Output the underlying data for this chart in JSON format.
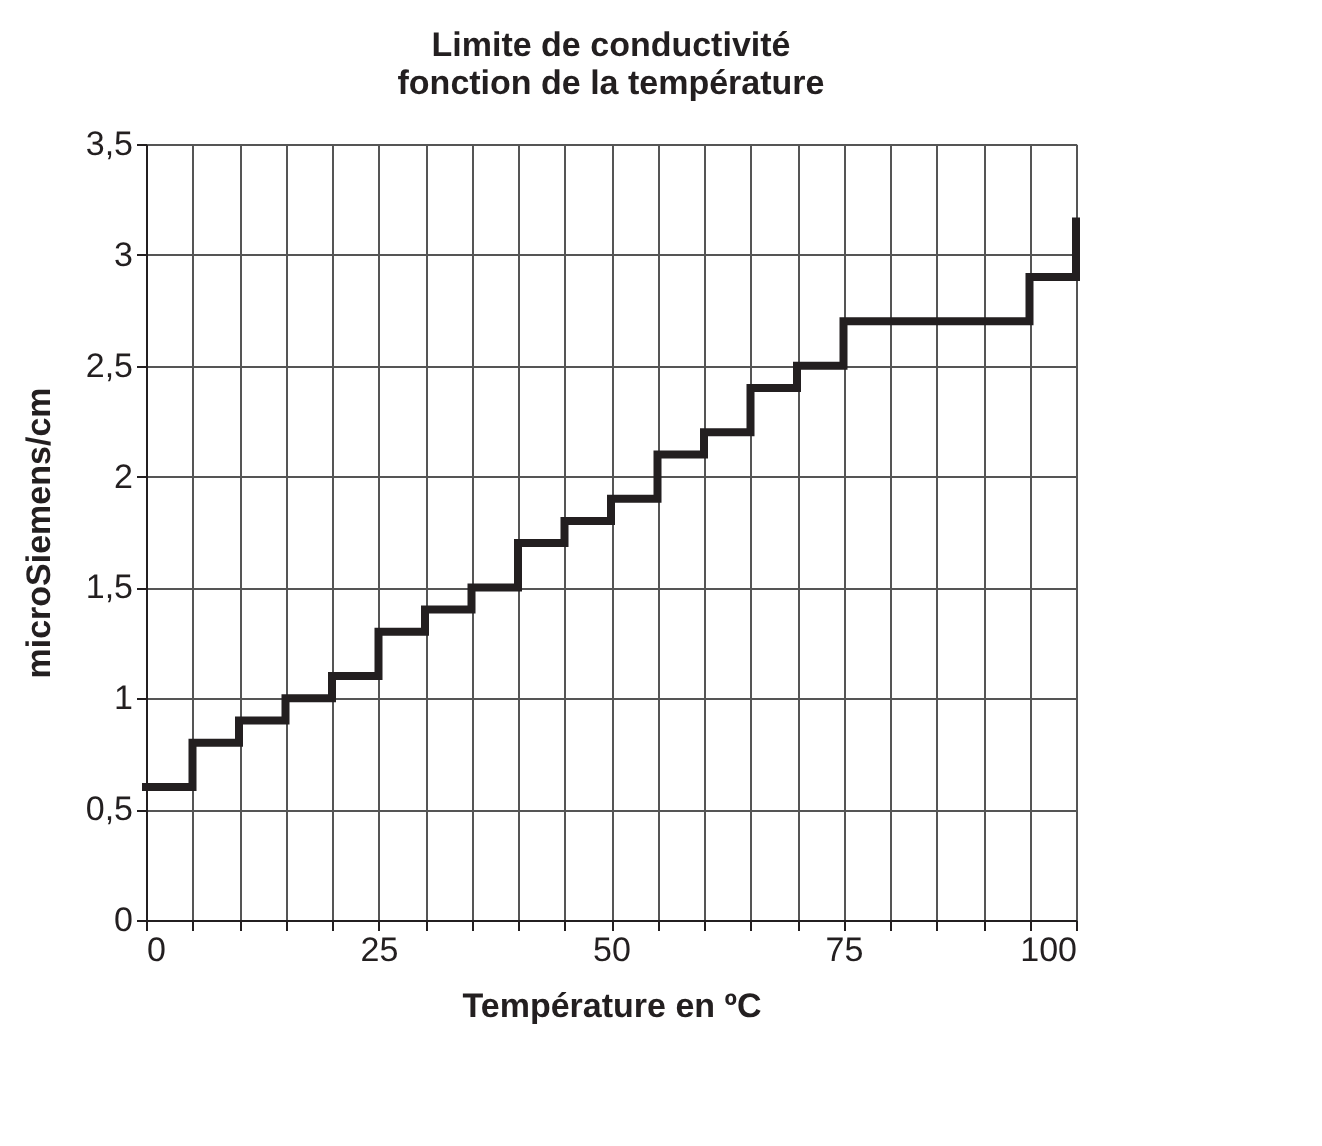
{
  "chart_data": {
    "type": "step",
    "title": "Limite de conductivité\nfonction de la température",
    "xlabel": "Température en ºC",
    "ylabel": "microSiemens/cm",
    "x": [
      0,
      5,
      10,
      15,
      20,
      25,
      30,
      35,
      40,
      45,
      50,
      55,
      60,
      65,
      70,
      75,
      80,
      85,
      90,
      95,
      100
    ],
    "series": [
      {
        "color": "#231f20",
        "values": [
          0.6,
          0.8,
          0.9,
          1.0,
          1.1,
          1.3,
          1.4,
          1.5,
          1.7,
          1.8,
          1.9,
          2.1,
          2.2,
          2.4,
          2.5,
          2.7,
          2.7,
          2.7,
          2.7,
          2.9,
          3.15
        ]
      }
    ],
    "xlim": [
      0,
      100
    ],
    "ylim": [
      0,
      3.5
    ],
    "xticks": [
      0,
      {
        "value": 5,
        "label": null
      },
      {
        "value": 10,
        "label": null
      },
      {
        "value": 15,
        "label": null
      },
      {
        "value": 20,
        "label": null
      },
      25,
      {
        "value": 30,
        "label": null
      },
      {
        "value": 35,
        "label": null
      },
      {
        "value": 40,
        "label": null
      },
      {
        "value": 45,
        "label": null
      },
      50,
      {
        "value": 55,
        "label": null
      },
      {
        "value": 60,
        "label": null
      },
      {
        "value": 65,
        "label": null
      },
      {
        "value": 70,
        "label": null
      },
      75,
      {
        "value": 80,
        "label": null
      },
      {
        "value": 85,
        "label": null
      },
      {
        "value": 90,
        "label": null
      },
      {
        "value": 95,
        "label": null
      },
      100
    ],
    "yticks": [
      0,
      {
        "value": 0.5,
        "label": "0,5"
      },
      1,
      {
        "value": 1.5,
        "label": "1,5"
      },
      2,
      {
        "value": 2.5,
        "label": "2,5"
      },
      3,
      {
        "value": 3.5,
        "label": "3,5"
      }
    ],
    "grid": true,
    "marker": "none",
    "line_style": "solid"
  }
}
